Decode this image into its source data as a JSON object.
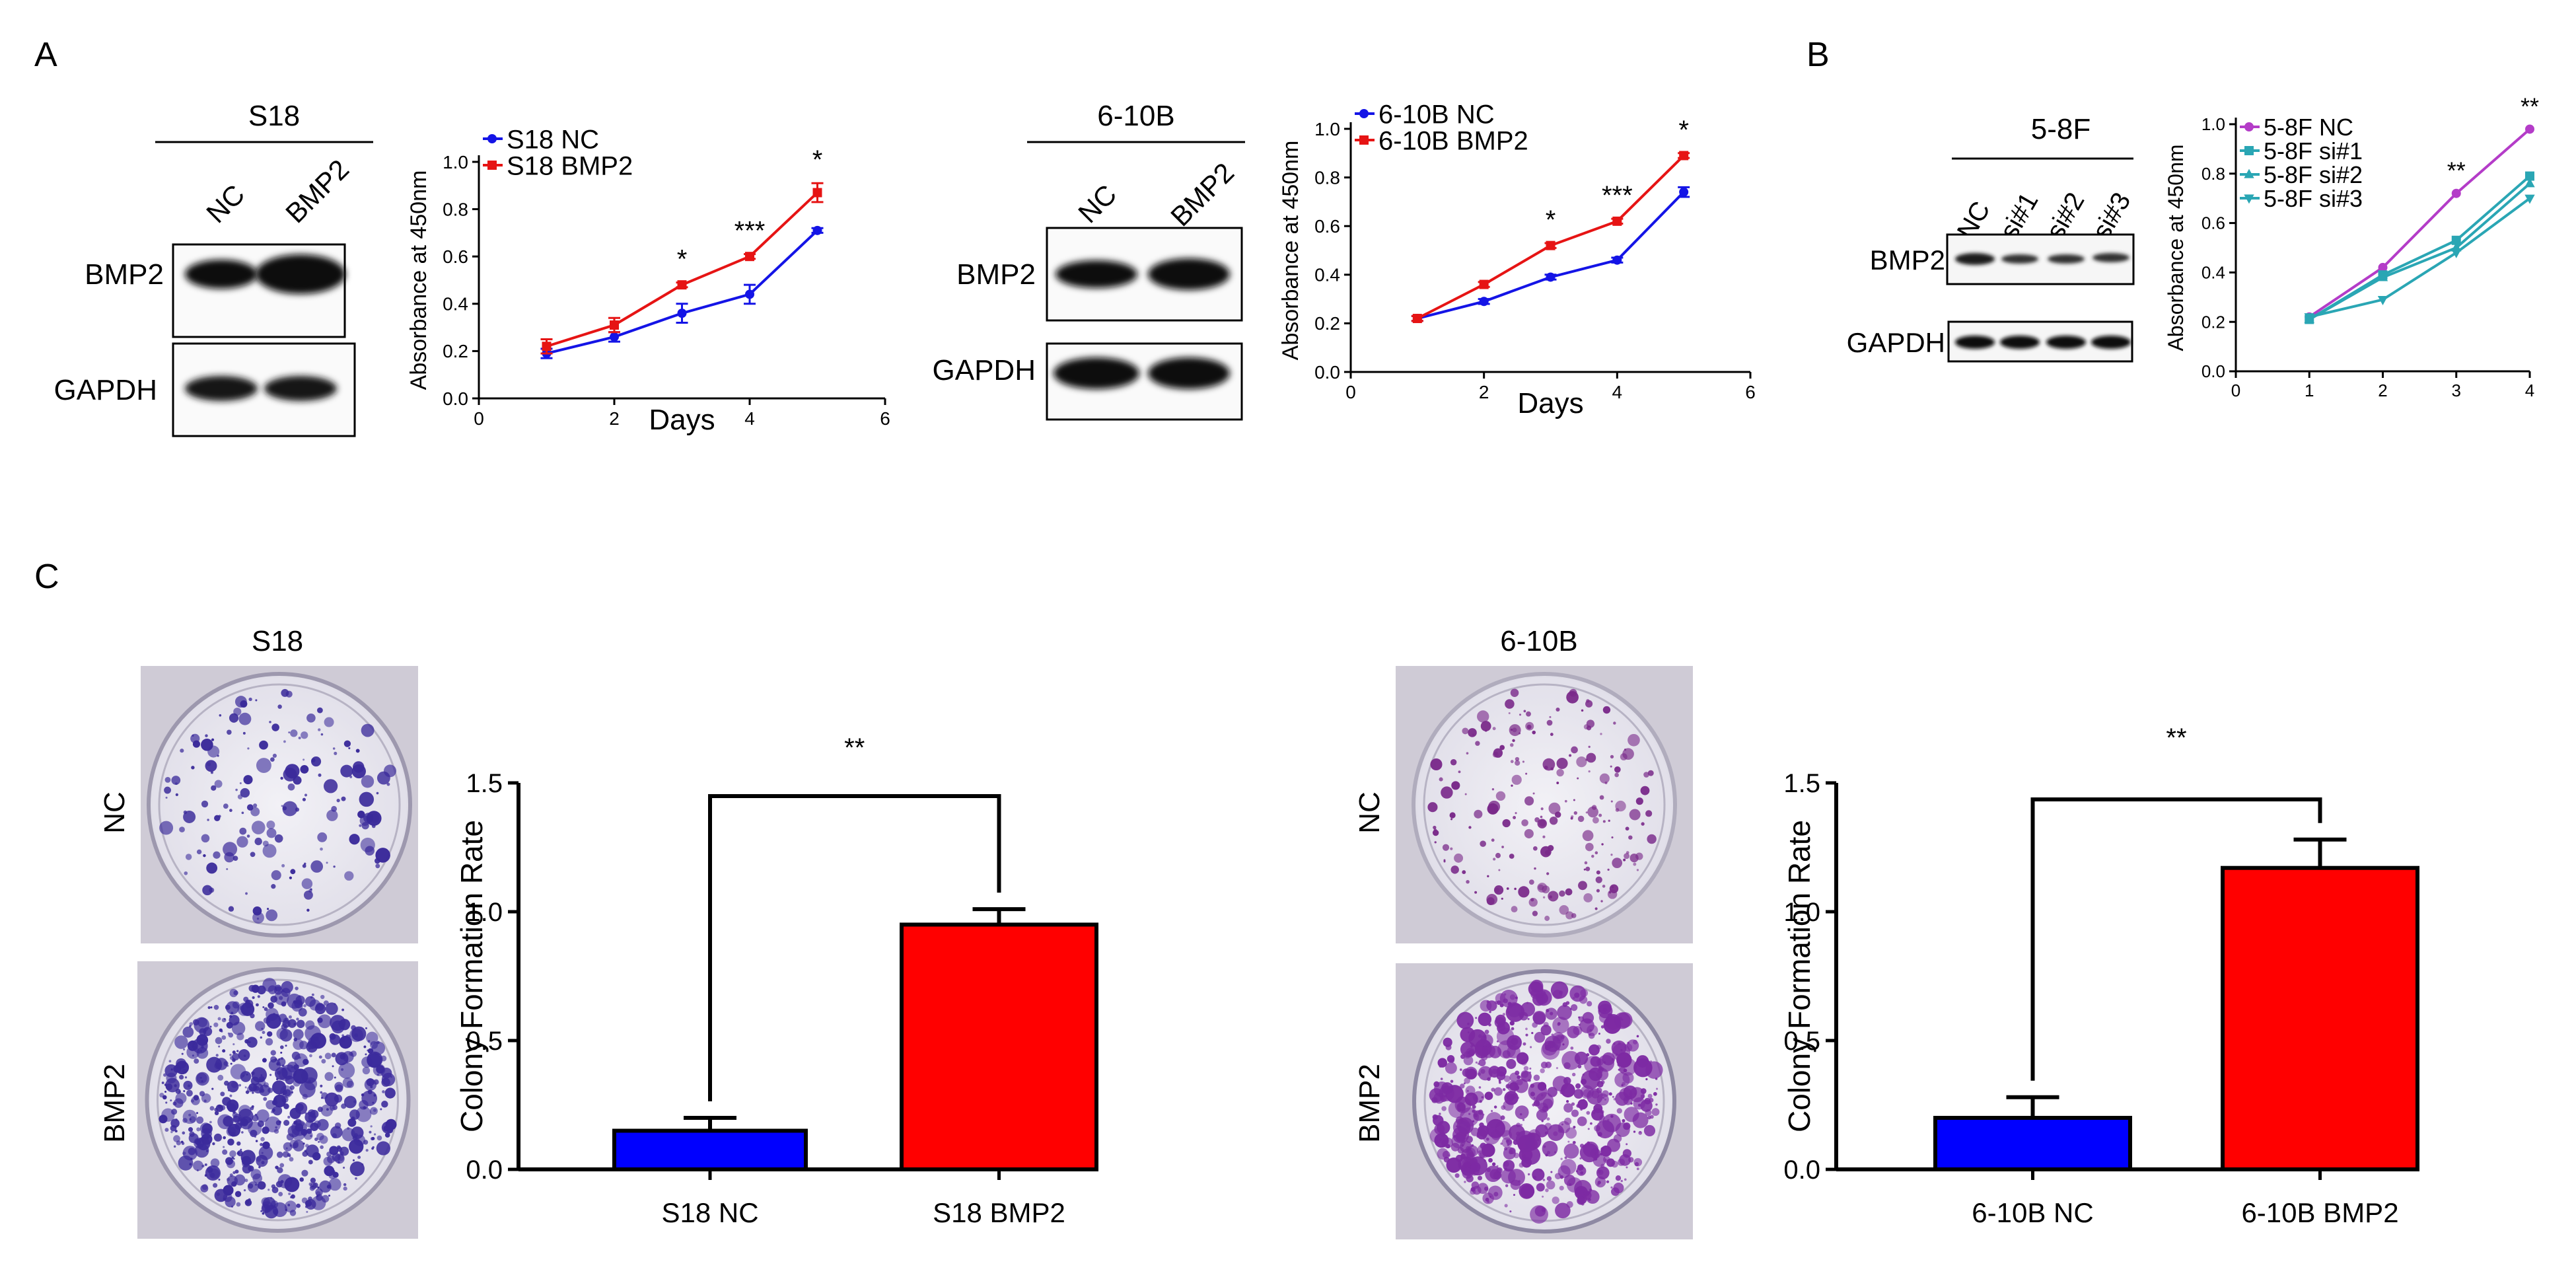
{
  "panels": {
    "a": "A",
    "b": "B",
    "c": "C"
  },
  "colors": {
    "blue": "#1414E6",
    "red": "#E61414",
    "magenta": "#B43CC8",
    "teal": "#2AA6B4",
    "bar_blue": "#0000FF",
    "bar_red": "#FF0000"
  },
  "blots": [
    {
      "title": "S18",
      "lanes": [
        "NC",
        "BMP2"
      ],
      "rows": [
        "BMP2",
        "GAPDH"
      ]
    },
    {
      "title": "6-10B",
      "lanes": [
        "NC",
        "BMP2"
      ],
      "rows": [
        "BMP2",
        "GAPDH"
      ]
    },
    {
      "title": "5-8F",
      "lanes": [
        "NC",
        "si#1",
        "si#2",
        "si#3"
      ],
      "rows": [
        "BMP2",
        "GAPDH"
      ]
    }
  ],
  "dishes": [
    {
      "title": "S18",
      "labels": [
        "NC",
        "BMP2"
      ]
    },
    {
      "title": "6-10B",
      "labels": [
        "NC",
        "BMP2"
      ]
    }
  ],
  "chart_data": [
    {
      "type": "line",
      "ylabel": "Absorbance at 450nm",
      "xlabel": "Days",
      "xlim": [
        0,
        6
      ],
      "ylim": [
        0,
        1.0
      ],
      "xticks": [
        "0",
        "2",
        "4",
        "6"
      ],
      "yticks": [
        "0.0",
        "0.2",
        "0.4",
        "0.6",
        "0.8",
        "1.0"
      ],
      "x": [
        1,
        2,
        3,
        4,
        5
      ],
      "series": [
        {
          "name": "S18 NC",
          "values": [
            0.19,
            0.26,
            0.36,
            0.44,
            0.71
          ],
          "err": [
            0.02,
            0.02,
            0.04,
            0.04,
            0.01
          ],
          "color": "#1414E6",
          "marker": "circle"
        },
        {
          "name": "S18 BMP2",
          "values": [
            0.22,
            0.31,
            0.48,
            0.6,
            0.87
          ],
          "err": [
            0.03,
            0.03,
            0.01,
            0.01,
            0.04
          ],
          "color": "#E61414",
          "marker": "square"
        }
      ],
      "annotations": [
        {
          "x": 3,
          "text": "*"
        },
        {
          "x": 4,
          "text": "***"
        },
        {
          "x": 5,
          "text": "*"
        }
      ]
    },
    {
      "type": "line",
      "ylabel": "Absorbance at 450nm",
      "xlabel": "Days",
      "xlim": [
        0,
        6
      ],
      "ylim": [
        0,
        1.0
      ],
      "xticks": [
        "0",
        "2",
        "4",
        "6"
      ],
      "yticks": [
        "0.0",
        "0.2",
        "0.4",
        "0.6",
        "0.8",
        "1.0"
      ],
      "x": [
        1,
        2,
        3,
        4,
        5
      ],
      "series": [
        {
          "name": "6-10B NC",
          "values": [
            0.22,
            0.29,
            0.39,
            0.46,
            0.74
          ],
          "err": [
            0.01,
            0.01,
            0.01,
            0.01,
            0.02
          ],
          "color": "#1414E6",
          "marker": "circle"
        },
        {
          "name": "6-10B BMP2",
          "values": [
            0.22,
            0.36,
            0.52,
            0.62,
            0.89
          ],
          "err": [
            0.01,
            0.01,
            0.01,
            0.01,
            0.01
          ],
          "color": "#E61414",
          "marker": "square"
        }
      ],
      "annotations": [
        {
          "x": 3,
          "text": "*"
        },
        {
          "x": 4,
          "text": "***"
        },
        {
          "x": 5,
          "text": "*"
        }
      ]
    },
    {
      "type": "line",
      "ylabel": "Absorbance at 450nm",
      "xlabel": "",
      "xlim": [
        0,
        4
      ],
      "ylim": [
        0,
        1.0
      ],
      "xticks": [
        "0",
        "1",
        "2",
        "3",
        "4"
      ],
      "yticks": [
        "0.0",
        "0.2",
        "0.4",
        "0.6",
        "0.8",
        "1.0"
      ],
      "x": [
        1,
        2,
        3,
        4
      ],
      "series": [
        {
          "name": "5-8F NC",
          "values": [
            0.22,
            0.42,
            0.72,
            0.98
          ],
          "color": "#B43CC8",
          "marker": "circle"
        },
        {
          "name": "5-8F si#1",
          "values": [
            0.21,
            0.39,
            0.53,
            0.79
          ],
          "color": "#2AA6B4",
          "marker": "square"
        },
        {
          "name": "5-8F si#2",
          "values": [
            0.21,
            0.38,
            0.5,
            0.76
          ],
          "color": "#2AA6B4",
          "marker": "triangle"
        },
        {
          "name": "5-8F si#3",
          "values": [
            0.22,
            0.29,
            0.48,
            0.7
          ],
          "color": "#2AA6B4",
          "marker": "triangle-down"
        }
      ],
      "annotations": [
        {
          "x": 3,
          "text": "**"
        },
        {
          "x": 4,
          "text": "**"
        }
      ]
    },
    {
      "type": "bar",
      "ylabel": "Colony Formation Rate",
      "ylim": [
        0,
        1.5
      ],
      "yticks": [
        "0.0",
        "0.5",
        "1.0",
        "1.5"
      ],
      "categories": [
        "S18 NC",
        "S18 BMP2"
      ],
      "values": [
        0.15,
        0.95
      ],
      "err": [
        0.05,
        0.06
      ],
      "colors": [
        "#0000FF",
        "#FF0000"
      ],
      "significance": "**"
    },
    {
      "type": "bar",
      "ylabel": "Colony Formation Rate",
      "ylim": [
        0,
        1.5
      ],
      "yticks": [
        "0.0",
        "0.5",
        "1.0",
        "1.5"
      ],
      "categories": [
        "6-10B NC",
        "6-10B BMP2"
      ],
      "values": [
        0.2,
        1.17
      ],
      "err": [
        0.08,
        0.11
      ],
      "colors": [
        "#0000FF",
        "#FF0000"
      ],
      "significance": "**"
    }
  ]
}
